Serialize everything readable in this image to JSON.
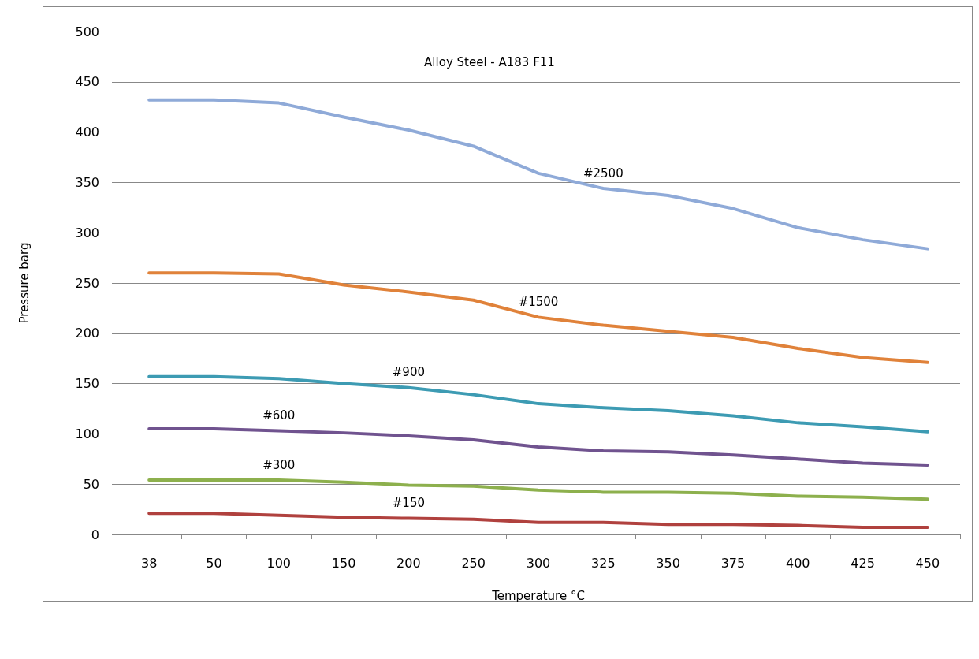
{
  "chart_data": {
    "type": "line",
    "title": "Alloy Steel - A183 F11",
    "xlabel": "Temperature °C",
    "ylabel": "Pressure barg",
    "categories": [
      "38",
      "50",
      "100",
      "150",
      "200",
      "250",
      "300",
      "325",
      "350",
      "375",
      "400",
      "425",
      "450"
    ],
    "series": [
      {
        "name": "#2500",
        "color": "#8faad8",
        "values": [
          432,
          432,
          429,
          415,
          402,
          386,
          359,
          344,
          337,
          324,
          305,
          293,
          284
        ]
      },
      {
        "name": "#1500",
        "color": "#e0823a",
        "values": [
          260,
          260,
          259,
          248,
          241,
          233,
          216,
          208,
          202,
          196,
          185,
          176,
          171
        ]
      },
      {
        "name": "#900",
        "color": "#3d9bb3",
        "values": [
          157,
          157,
          155,
          150,
          146,
          139,
          130,
          126,
          123,
          118,
          111,
          107,
          102
        ]
      },
      {
        "name": "#600",
        "color": "#70538f",
        "values": [
          105,
          105,
          103,
          101,
          98,
          94,
          87,
          83,
          82,
          79,
          75,
          71,
          69
        ]
      },
      {
        "name": "#300",
        "color": "#8db04d",
        "values": [
          54,
          54,
          54,
          52,
          49,
          48,
          44,
          42,
          42,
          41,
          38,
          37,
          35
        ]
      },
      {
        "name": "#150",
        "color": "#b0413e",
        "values": [
          21,
          21,
          19,
          17,
          16,
          15,
          12,
          12,
          10,
          10,
          9,
          7,
          7
        ]
      }
    ],
    "ylim": [
      0,
      500
    ],
    "yticks": [
      0,
      50,
      100,
      150,
      200,
      250,
      300,
      350,
      400,
      450,
      500
    ],
    "grid": "y",
    "marker": "none",
    "line_style": "solid"
  }
}
